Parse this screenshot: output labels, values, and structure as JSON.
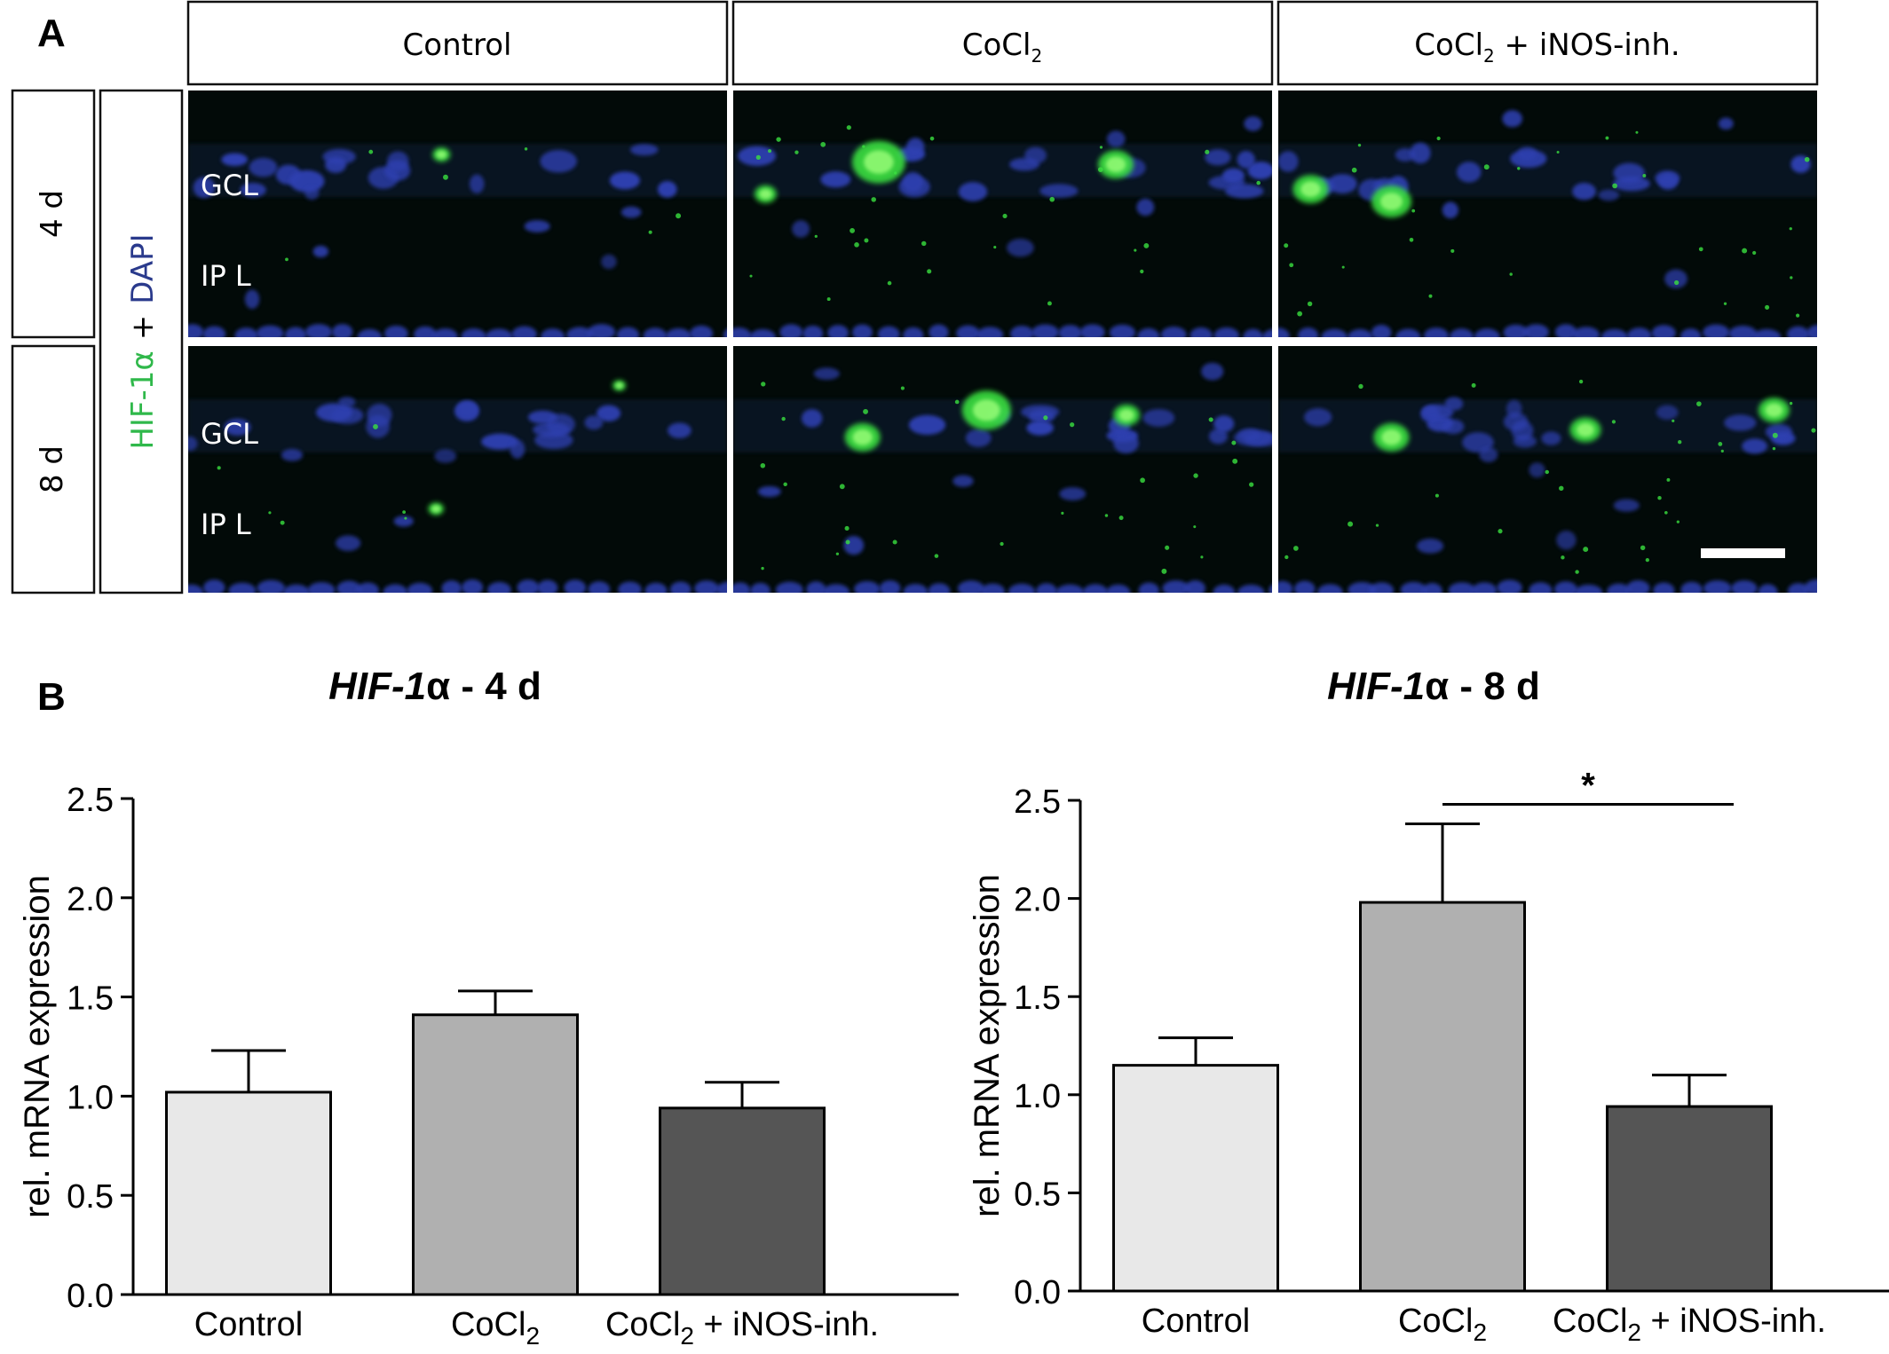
{
  "panel_a": {
    "label": "A",
    "columns": [
      {
        "text": "Control",
        "sub": ""
      },
      {
        "text": "CoCl",
        "sub": "2"
      },
      {
        "text": "CoCl",
        "sub": "2",
        "suffix": " + iNOS-inh."
      }
    ],
    "rows": [
      "4 d",
      "8 d"
    ],
    "stain": {
      "green": "HIF-1α",
      "plus": "+",
      "blue": "DAPI"
    },
    "layer_labels": {
      "gcl": "GCL",
      "ipl": "IP L"
    },
    "colors": {
      "green": "#2fb84a",
      "blue": "#2a3a8c",
      "background": "#020a08",
      "nucleus": "#2e3fb0",
      "signal": "#3ae040"
    }
  },
  "panel_b": {
    "label": "B"
  },
  "chart_data": [
    {
      "type": "bar",
      "title": "HIF-1α - 4 d",
      "title_italic": "HIF-1",
      "title_rest": "α - 4 d",
      "ylabel": "rel. mRNA expression",
      "xlabel": "",
      "ylim": [
        0,
        2.5
      ],
      "yticks": [
        "0.0",
        "0.5",
        "1.0",
        "1.5",
        "2.0",
        "2.5"
      ],
      "categories": [
        "Control",
        "CoCl2",
        "CoCl2 + iNOS-inh."
      ],
      "category_parts": [
        {
          "text": "Control",
          "sub": ""
        },
        {
          "text": "CoCl",
          "sub": "2"
        },
        {
          "text": "CoCl",
          "sub": "2",
          "suffix": " + iNOS-inh."
        }
      ],
      "values": [
        1.02,
        1.41,
        0.94
      ],
      "errors": [
        0.21,
        0.12,
        0.13
      ],
      "colors": [
        "#e8e8e8",
        "#b0b0b0",
        "#555555"
      ],
      "significance": null
    },
    {
      "type": "bar",
      "title": "HIF-1α - 8 d",
      "title_italic": "HIF-1",
      "title_rest": "α - 8 d",
      "ylabel": "rel. mRNA expression",
      "xlabel": "",
      "ylim": [
        0,
        2.5
      ],
      "yticks": [
        "0.0",
        "0.5",
        "1.0",
        "1.5",
        "2.0",
        "2.5"
      ],
      "categories": [
        "Control",
        "CoCl2",
        "CoCl2 + iNOS-inh."
      ],
      "category_parts": [
        {
          "text": "Control",
          "sub": ""
        },
        {
          "text": "CoCl",
          "sub": "2"
        },
        {
          "text": "CoCl",
          "sub": "2",
          "suffix": " + iNOS-inh."
        }
      ],
      "values": [
        1.15,
        1.98,
        0.94
      ],
      "errors": [
        0.14,
        0.4,
        0.16
      ],
      "colors": [
        "#e8e8e8",
        "#b0b0b0",
        "#555555"
      ],
      "significance": {
        "from": 1,
        "to": 2,
        "label": "*"
      }
    }
  ]
}
